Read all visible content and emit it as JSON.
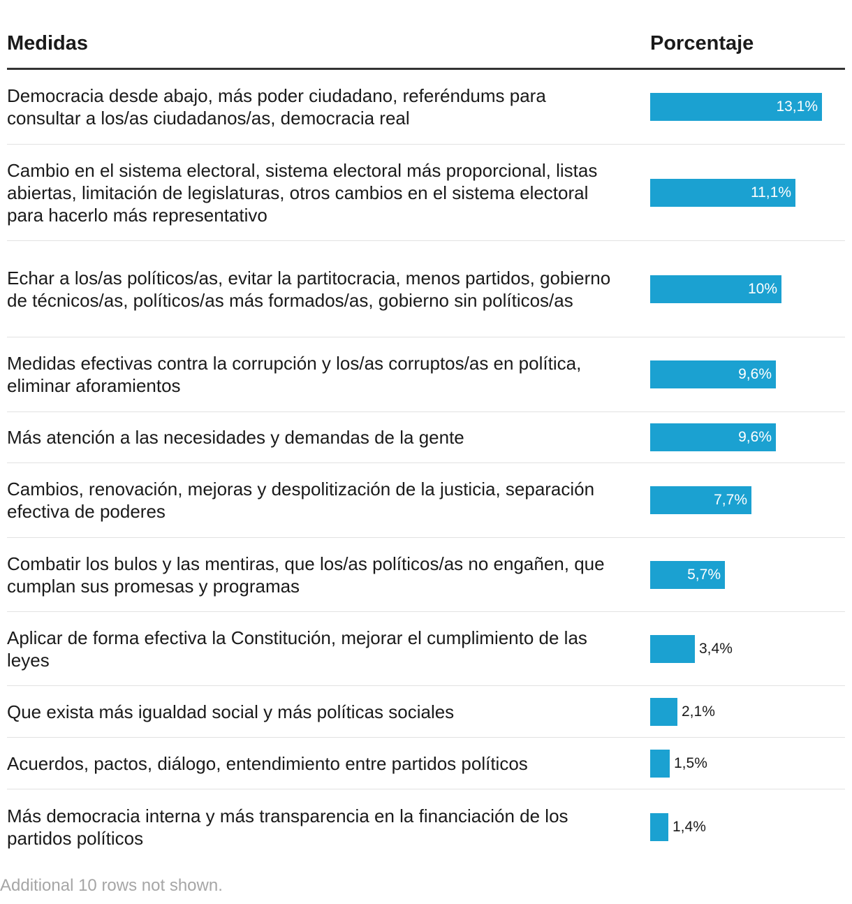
{
  "table": {
    "headers": {
      "label": "Medidas",
      "value": "Porcentaje"
    },
    "footer": "Additional 10 rows not shown."
  },
  "colors": {
    "bar": "#1ba1d1"
  },
  "chart_data": {
    "type": "bar",
    "orientation": "horizontal",
    "unit": "%",
    "xlim": [
      0,
      13.1
    ],
    "categories": [
      "Democracia desde abajo, más poder ciudadano, referéndums para consultar a los/as ciudadanos/as, democracia real",
      "Cambio en el sistema electoral, sistema electoral más proporcional, listas abiertas, limitación de legislaturas, otros cambios en el sistema electoral para hacerlo más representativo",
      "Echar a los/as políticos/as, evitar la partitocracia, menos partidos, gobierno de técnicos/as, políticos/as más formados/as, gobierno sin políticos/as",
      "Medidas efectivas contra la corrupción y los/as corruptos/as en política, eliminar aforamientos",
      "Más atención a las necesidades y demandas de la gente",
      "Cambios, renovación, mejoras y despolitización de la justicia, separación efectiva de poderes",
      "Combatir los bulos y las mentiras, que los/as políticos/as no engañen, que cumplan sus promesas y programas",
      "Aplicar de forma efectiva la Constitución, mejorar el cumplimiento de las leyes",
      "Que exista más igualdad social y más políticas sociales",
      "Acuerdos, pactos, diálogo, entendimiento entre partidos políticos",
      "Más democracia interna y más transparencia en la financiación de los partidos políticos"
    ],
    "values": [
      13.1,
      11.1,
      10,
      9.6,
      9.6,
      7.7,
      5.7,
      3.4,
      2.1,
      1.5,
      1.4
    ],
    "value_labels": [
      "13,1%",
      "11,1%",
      "10%",
      "9,6%",
      "9,6%",
      "7,7%",
      "5,7%",
      "3,4%",
      "2,1%",
      "1,5%",
      "1,4%"
    ]
  }
}
